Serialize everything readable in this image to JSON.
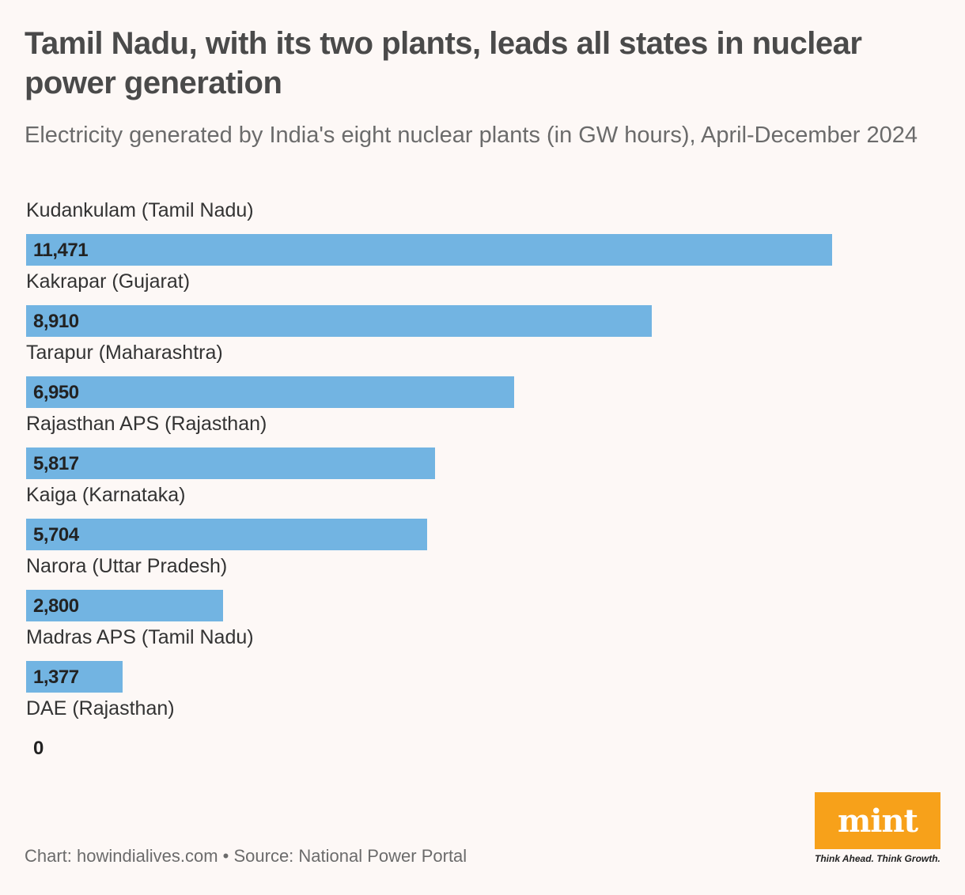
{
  "title": "Tamil Nadu, with its two plants, leads all states in nuclear power generation",
  "subtitle": "Electricity generated by India's eight nuclear plants (in GW hours), April-December 2024",
  "colors": {
    "bar": "#72b4e2",
    "background": "#fdf8f6",
    "logo": "#f7a11a"
  },
  "chart_data": {
    "type": "bar",
    "orientation": "horizontal",
    "categories": [
      "Kudankulam (Tamil Nadu)",
      "Kakrapar (Gujarat)",
      "Tarapur (Maharashtra)",
      "Rajasthan APS (Rajasthan)",
      "Kaiga (Karnataka)",
      "Narora (Uttar Pradesh)",
      "Madras APS (Tamil Nadu)",
      "DAE (Rajasthan)"
    ],
    "values": [
      11471,
      8910,
      6950,
      5817,
      5704,
      2800,
      1377,
      0
    ],
    "value_labels": [
      "11,471",
      "8,910",
      "6,950",
      "5,817",
      "5,704",
      "2,800",
      "1,377",
      "0"
    ],
    "title": "Tamil Nadu, with its two plants, leads all states in nuclear power generation",
    "xlabel": "",
    "ylabel": "",
    "xlim": [
      0,
      11471
    ],
    "grid": false,
    "legend": "none"
  },
  "footer": "Chart: howindialives.com • Source: National Power Portal",
  "logo": {
    "word": "mint",
    "tagline": "Think Ahead. Think Growth."
  }
}
